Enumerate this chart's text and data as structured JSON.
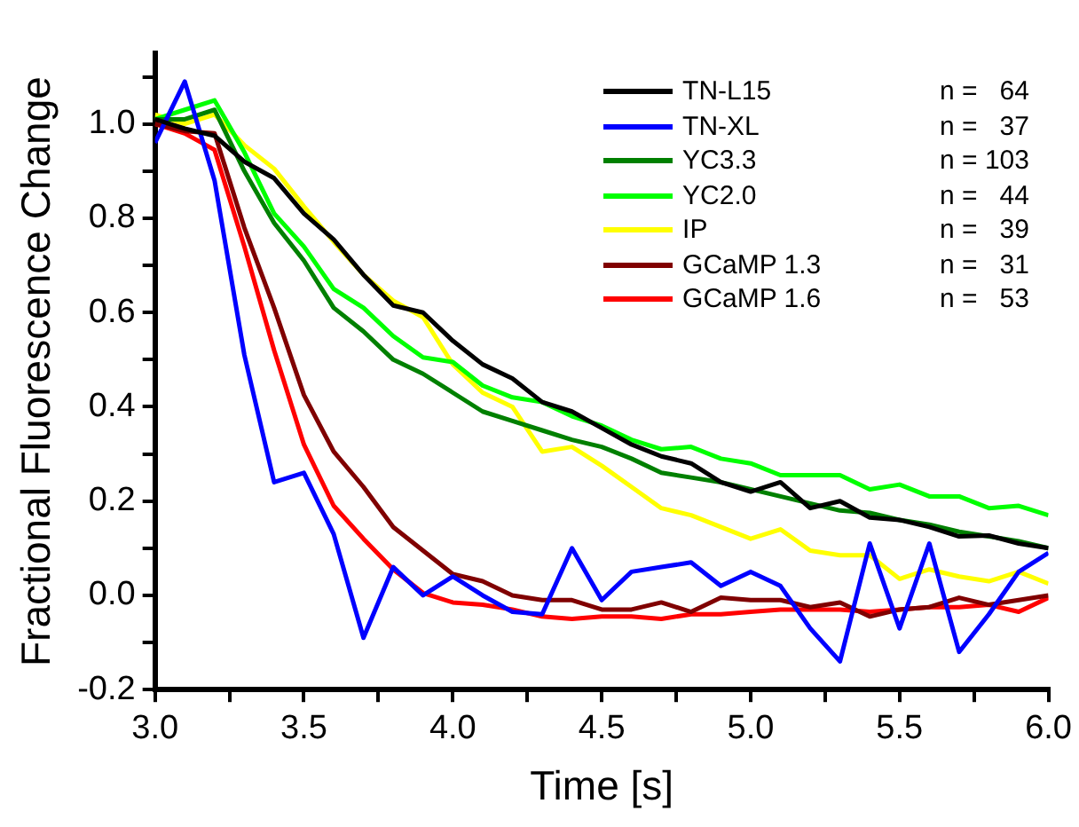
{
  "chart_data": {
    "type": "line",
    "xlabel": "Time [s]",
    "ylabel": "Fractional Fluorescence Change",
    "x": [
      3.0,
      3.1,
      3.2,
      3.3,
      3.4,
      3.5,
      3.6,
      3.7,
      3.8,
      3.9,
      4.0,
      4.1,
      4.2,
      4.3,
      4.4,
      4.5,
      4.6,
      4.7,
      4.8,
      4.9,
      5.0,
      5.1,
      5.2,
      5.3,
      5.4,
      5.5,
      5.6,
      5.7,
      5.8,
      5.9,
      6.0
    ],
    "series": [
      {
        "name": "TN-L15",
        "color": "#000000",
        "values": [
          1.01,
          0.99,
          0.975,
          0.92,
          0.885,
          0.81,
          0.755,
          0.68,
          0.615,
          0.6,
          0.54,
          0.49,
          0.46,
          0.41,
          0.39,
          0.355,
          0.32,
          0.295,
          0.28,
          0.24,
          0.22,
          0.24,
          0.185,
          0.2,
          0.165,
          0.16,
          0.145,
          0.125,
          0.127,
          0.11,
          0.1
        ]
      },
      {
        "name": "TN-XL",
        "color": "#0000ff",
        "values": [
          0.96,
          1.09,
          0.88,
          0.51,
          0.24,
          0.26,
          0.13,
          -0.09,
          0.06,
          0.0,
          0.04,
          0.0,
          -0.035,
          -0.04,
          0.1,
          -0.01,
          0.05,
          0.06,
          0.07,
          0.02,
          0.05,
          0.02,
          -0.07,
          -0.14,
          0.11,
          -0.07,
          0.11,
          -0.12,
          -0.04,
          0.05,
          0.09
        ]
      },
      {
        "name": "YC3.3",
        "color": "#008000",
        "values": [
          1.01,
          1.01,
          1.03,
          0.9,
          0.79,
          0.71,
          0.61,
          0.56,
          0.5,
          0.47,
          0.43,
          0.39,
          0.37,
          0.35,
          0.33,
          0.315,
          0.29,
          0.26,
          0.25,
          0.24,
          0.225,
          0.21,
          0.195,
          0.18,
          0.175,
          0.16,
          0.15,
          0.135,
          0.125,
          0.115,
          0.1
        ]
      },
      {
        "name": "YC2.0",
        "color": "#00ff00",
        "values": [
          1.01,
          1.03,
          1.05,
          0.94,
          0.81,
          0.74,
          0.65,
          0.61,
          0.55,
          0.505,
          0.495,
          0.445,
          0.42,
          0.41,
          0.38,
          0.36,
          0.33,
          0.31,
          0.315,
          0.29,
          0.28,
          0.255,
          0.255,
          0.255,
          0.225,
          0.235,
          0.21,
          0.21,
          0.185,
          0.19,
          0.17
        ]
      },
      {
        "name": "IP",
        "color": "#ffff00",
        "values": [
          1.02,
          1.0,
          1.02,
          0.955,
          0.905,
          0.825,
          0.75,
          0.68,
          0.625,
          0.59,
          0.49,
          0.43,
          0.4,
          0.305,
          0.315,
          0.275,
          0.23,
          0.185,
          0.17,
          0.145,
          0.12,
          0.14,
          0.095,
          0.085,
          0.085,
          0.035,
          0.055,
          0.04,
          0.03,
          0.05,
          0.025
        ]
      },
      {
        "name": "GCaMP 1.3",
        "color": "#800000",
        "values": [
          1.0,
          0.985,
          0.98,
          0.78,
          0.61,
          0.425,
          0.305,
          0.23,
          0.145,
          0.095,
          0.045,
          0.03,
          0.0,
          -0.01,
          -0.01,
          -0.03,
          -0.03,
          -0.015,
          -0.035,
          -0.005,
          -0.01,
          -0.01,
          -0.025,
          -0.015,
          -0.045,
          -0.03,
          -0.025,
          -0.005,
          -0.02,
          -0.01,
          0.0
        ]
      },
      {
        "name": "GCaMP 1.6",
        "color": "#ff0000",
        "values": [
          1.0,
          0.98,
          0.945,
          0.74,
          0.52,
          0.32,
          0.19,
          0.12,
          0.055,
          0.005,
          -0.015,
          -0.02,
          -0.03,
          -0.045,
          -0.05,
          -0.045,
          -0.045,
          -0.05,
          -0.04,
          -0.04,
          -0.035,
          -0.03,
          -0.03,
          -0.03,
          -0.035,
          -0.03,
          -0.025,
          -0.025,
          -0.02,
          -0.035,
          -0.005
        ]
      }
    ],
    "annotations": [
      "n =   64",
      "n =   37",
      "n = 103",
      "n =   44",
      "n =   39",
      "n =   31",
      "n =   53"
    ],
    "xlim": [
      3.0,
      6.0
    ],
    "xticks": [
      {
        "value": 3.0,
        "label": "3.0"
      },
      {
        "value": 3.25,
        "label": null
      },
      {
        "value": 3.5,
        "label": "3.5"
      },
      {
        "value": 3.75,
        "label": null
      },
      {
        "value": 4.0,
        "label": "4.0"
      },
      {
        "value": 4.25,
        "label": null
      },
      {
        "value": 4.5,
        "label": "4.5"
      },
      {
        "value": 4.75,
        "label": null
      },
      {
        "value": 5.0,
        "label": "5.0"
      },
      {
        "value": 5.25,
        "label": null
      },
      {
        "value": 5.5,
        "label": "5.5"
      },
      {
        "value": 5.75,
        "label": null
      },
      {
        "value": 6.0,
        "label": "6.0"
      }
    ],
    "ylim": [
      -0.2,
      1.15
    ],
    "yticks": [
      {
        "value": -0.2,
        "label": "-0.2"
      },
      {
        "value": -0.1,
        "label": null
      },
      {
        "value": 0.0,
        "label": "0.0"
      },
      {
        "value": 0.1,
        "label": null
      },
      {
        "value": 0.2,
        "label": "0.2"
      },
      {
        "value": 0.3,
        "label": null
      },
      {
        "value": 0.4,
        "label": "0.4"
      },
      {
        "value": 0.5,
        "label": null
      },
      {
        "value": 0.6,
        "label": "0.6"
      },
      {
        "value": 0.7,
        "label": null
      },
      {
        "value": 0.8,
        "label": "0.8"
      },
      {
        "value": 0.9,
        "label": null
      },
      {
        "value": 1.0,
        "label": "1.0"
      },
      {
        "value": 1.1,
        "label": null
      }
    ],
    "grid": false,
    "legend": "top right",
    "marker": "none",
    "line_style": "solid"
  }
}
